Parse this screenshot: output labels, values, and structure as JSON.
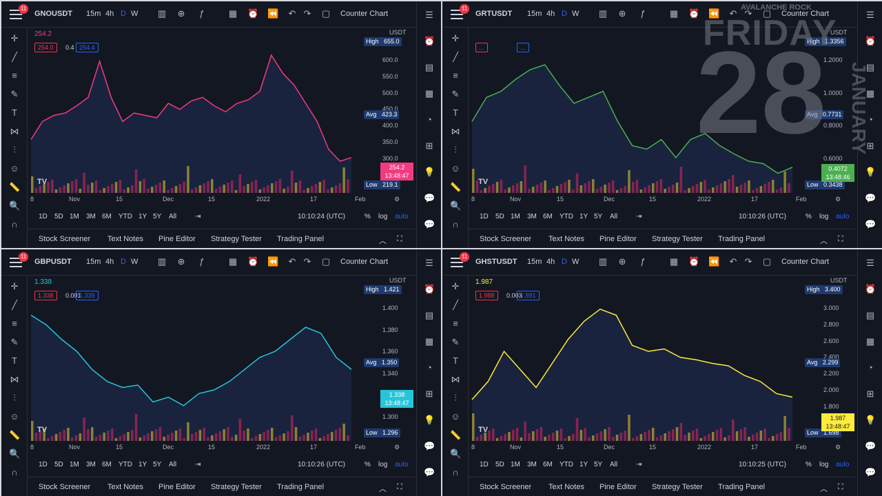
{
  "overlay": {
    "track": "AVALANCHE ROCK",
    "day": "FRIDAY",
    "date": "28",
    "month": "JANUARY"
  },
  "toolbar": {
    "intervals": [
      "15m",
      "4h",
      "D",
      "W"
    ],
    "counter_chart": "Counter Chart",
    "badge": "11"
  },
  "ranges": [
    "1D",
    "5D",
    "1M",
    "3M",
    "6M",
    "YTD",
    "1Y",
    "5Y",
    "All"
  ],
  "range_right": {
    "pct": "%",
    "log": "log",
    "auto": "auto"
  },
  "bottom_tabs": [
    "Stock Screener",
    "Text Notes",
    "Pine Editor",
    "Strategy Tester",
    "Trading Panel"
  ],
  "colors": {
    "bg": "#131722",
    "accent": "#2962ff"
  },
  "panels": [
    {
      "symbol": "GNOUSDT",
      "color": "#f23b7f",
      "price_label": "254.2",
      "ohlc": [
        "254.0",
        "0.4",
        "254.4"
      ],
      "currency": "USDT",
      "high_label": "High",
      "high": "655.0",
      "avg_label": "Avg",
      "avg": "423.3",
      "low_label": "Low",
      "low": "219.1",
      "last": "254.2",
      "countdown": "13:48:47",
      "axis_ticks": [
        "600.0",
        "550.0",
        "500.0",
        "450.0",
        "400.0",
        "350.0",
        "300.0",
        "250.0"
      ],
      "time_labels": [
        "8",
        "Nov",
        "15",
        "Dec",
        "15",
        "2022",
        "17",
        "Feb"
      ],
      "clock": "10:10:24 (UTC)"
    },
    {
      "symbol": "GRTUSDT",
      "color": "#4caf50",
      "price_label": "",
      "ohlc": [
        "...",
        "",
        "..."
      ],
      "currency": "USDT",
      "high_label": "High",
      "high": "1.3356",
      "avg_label": "Avg",
      "avg": "0.7731",
      "low_label": "Low",
      "low": "0.3438",
      "last": "0.4072",
      "countdown": "13:48:46",
      "axis_ticks": [
        "1.2000",
        "1.0000",
        "0.8000",
        "0.6000"
      ],
      "time_labels": [
        "8",
        "Nov",
        "15",
        "Dec",
        "15",
        "2022",
        "17",
        "Feb"
      ],
      "clock": "10:10:26 (UTC)"
    },
    {
      "symbol": "GBPUSDT",
      "color": "#26c6da",
      "price_label": "1.338",
      "ohlc": [
        "1.338",
        "0.001",
        "1.339"
      ],
      "currency": "USDT",
      "high_label": "High",
      "high": "1.421",
      "avg_label": "Avg",
      "avg": "1.350",
      "low_label": "Low",
      "low": "1.296",
      "last": "1.338",
      "countdown": "13:48:47",
      "axis_ticks": [
        "1.400",
        "1.380",
        "1.360",
        "1.340",
        "1.320",
        "1.300"
      ],
      "time_labels": [
        "8",
        "Nov",
        "15",
        "Dec",
        "15",
        "2022",
        "17",
        "Feb"
      ],
      "clock": "10:10:26 (UTC)"
    },
    {
      "symbol": "GHSTUSDT",
      "color": "#ffeb3b",
      "price_label": "1.987",
      "ohlc": [
        "1.988",
        "0.003",
        "1.991"
      ],
      "currency": "USDT",
      "high_label": "High",
      "high": "3.400",
      "avg_label": "Avg",
      "avg": "2.299",
      "low_label": "Low",
      "low": "1.698",
      "last": "1.987",
      "countdown": "13:48:47",
      "axis_ticks": [
        "3.000",
        "2.800",
        "2.600",
        "2.400",
        "2.200",
        "2.000",
        "1.800",
        "1.600"
      ],
      "time_labels": [
        "8",
        "Nov",
        "15",
        "Dec",
        "15",
        "2022",
        "17",
        "Feb"
      ],
      "clock": "10:10:25 (UTC)"
    }
  ]
}
